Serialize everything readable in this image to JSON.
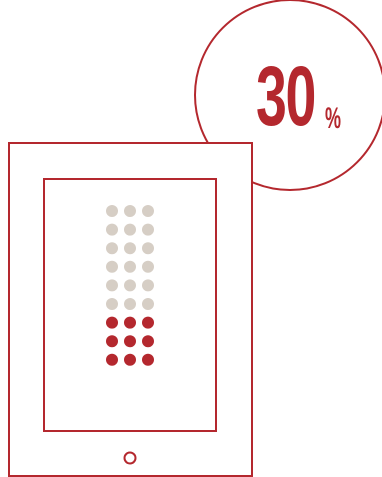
{
  "percentage": {
    "value": "30",
    "unit": "%"
  },
  "dot_grid": {
    "rows": 9,
    "columns": 3,
    "highlighted_rows": 3,
    "highlighted_fraction": 0.3
  },
  "colors": {
    "accent": "#b4282e",
    "inactive_dot": "#d6cec5",
    "background": "#ffffff"
  },
  "icons": {
    "device": "tablet-icon",
    "home_button": "home-button-icon"
  }
}
